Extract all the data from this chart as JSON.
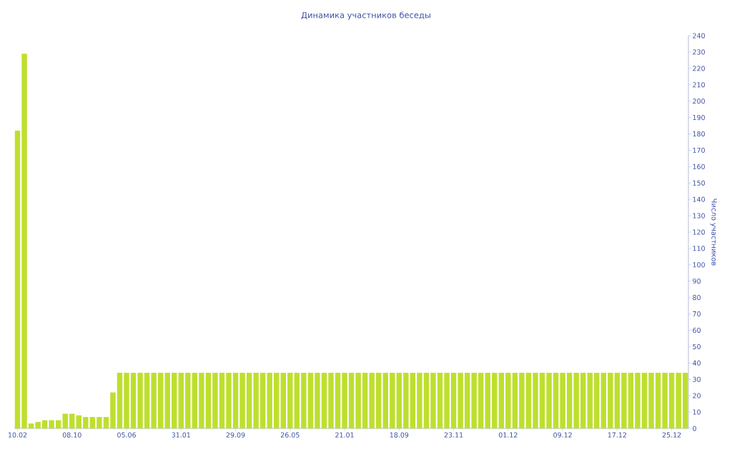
{
  "chart_data": {
    "type": "bar",
    "title": "Динамика участников беседы",
    "ylabel": "Число участников",
    "categories": [
      "10.02",
      null,
      null,
      null,
      null,
      null,
      null,
      null,
      "08.10",
      null,
      null,
      null,
      null,
      null,
      null,
      null,
      "05.06",
      null,
      null,
      null,
      null,
      null,
      null,
      null,
      "31.01",
      null,
      null,
      null,
      null,
      null,
      null,
      null,
      "29.09",
      null,
      null,
      null,
      null,
      null,
      null,
      null,
      "26.05",
      null,
      null,
      null,
      null,
      null,
      null,
      null,
      "21.01",
      null,
      null,
      null,
      null,
      null,
      null,
      null,
      "18.09",
      null,
      null,
      null,
      null,
      null,
      null,
      null,
      "23.11",
      null,
      null,
      null,
      null,
      null,
      null,
      null,
      "01.12",
      null,
      null,
      null,
      null,
      null,
      null,
      null,
      "09.12",
      null,
      null,
      null,
      null,
      null,
      null,
      null,
      "17.12",
      null,
      null,
      null,
      null,
      null,
      null,
      null,
      "25.12",
      null,
      null
    ],
    "values": [
      182,
      229,
      3,
      4,
      5,
      5,
      5,
      9,
      9,
      8,
      7,
      7,
      7,
      7,
      22,
      34,
      34,
      34,
      34,
      34,
      34,
      34,
      34,
      34,
      34,
      34,
      34,
      34,
      34,
      34,
      34,
      34,
      34,
      34,
      34,
      34,
      34,
      34,
      34,
      34,
      34,
      34,
      34,
      34,
      34,
      34,
      34,
      34,
      34,
      34,
      34,
      34,
      34,
      34,
      34,
      34,
      34,
      34,
      34,
      34,
      34,
      34,
      34,
      34,
      34,
      34,
      34,
      34,
      34,
      34,
      34,
      34,
      34,
      34,
      34,
      34,
      34,
      34,
      34,
      34,
      34,
      34,
      34,
      34,
      34,
      34,
      34,
      34,
      34,
      34,
      34,
      34,
      34,
      34,
      34,
      34,
      34,
      34,
      34
    ],
    "color": "#bedf2e",
    "ylim": [
      0,
      240
    ],
    "yticks": [
      0,
      10,
      20,
      30,
      40,
      50,
      60,
      70,
      80,
      90,
      100,
      110,
      120,
      130,
      140,
      150,
      160,
      170,
      180,
      190,
      200,
      210,
      220,
      230,
      240
    ]
  }
}
